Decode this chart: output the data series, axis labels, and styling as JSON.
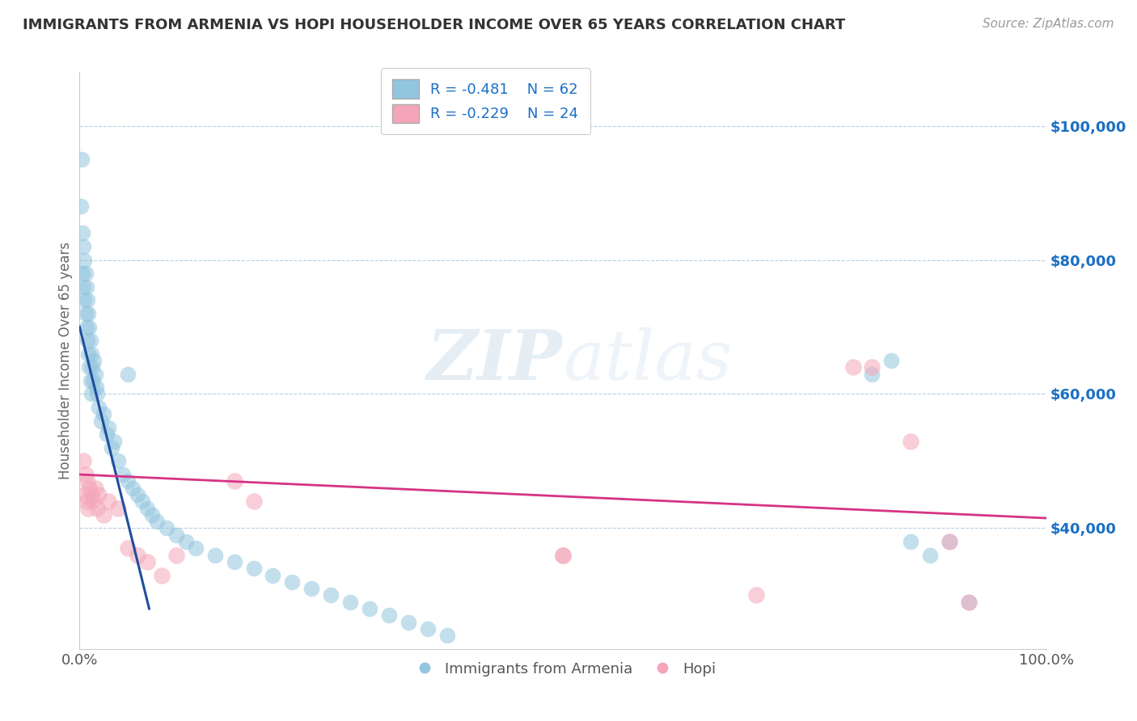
{
  "title": "IMMIGRANTS FROM ARMENIA VS HOPI HOUSEHOLDER INCOME OVER 65 YEARS CORRELATION CHART",
  "source_text": "Source: ZipAtlas.com",
  "ylabel": "Householder Income Over 65 years",
  "xlim": [
    0,
    1.0
  ],
  "ylim": [
    22000,
    108000
  ],
  "xticks": [
    0.0,
    1.0
  ],
  "xticklabels": [
    "0.0%",
    "100.0%"
  ],
  "yticks": [
    40000,
    60000,
    80000,
    100000
  ],
  "yticklabels": [
    "$40,000",
    "$60,000",
    "$80,000",
    "$100,000"
  ],
  "legend_r1": "R = -0.481",
  "legend_n1": "N = 62",
  "legend_r2": "R = -0.229",
  "legend_n2": "N = 24",
  "legend_label1": "Immigrants from Armenia",
  "legend_label2": "Hopi",
  "color_blue": "#92c5de",
  "color_pink": "#f4a6b8",
  "line_color_blue": "#1f4e9e",
  "line_color_pink": "#d63384",
  "watermark_zip": "ZIP",
  "watermark_atlas": "atlas",
  "blue_scatter_x": [
    0.001,
    0.002,
    0.003,
    0.003,
    0.004,
    0.004,
    0.005,
    0.005,
    0.006,
    0.006,
    0.007,
    0.007,
    0.008,
    0.008,
    0.009,
    0.009,
    0.01,
    0.01,
    0.011,
    0.011,
    0.012,
    0.012,
    0.013,
    0.014,
    0.015,
    0.016,
    0.017,
    0.018,
    0.02,
    0.022,
    0.025,
    0.028,
    0.03,
    0.033,
    0.036,
    0.04,
    0.045,
    0.05,
    0.055,
    0.06,
    0.065,
    0.07,
    0.075,
    0.08,
    0.09,
    0.1,
    0.11,
    0.12,
    0.14,
    0.16,
    0.18,
    0.2,
    0.22,
    0.24,
    0.26,
    0.28,
    0.3,
    0.32,
    0.34,
    0.36,
    0.38,
    0.05
  ],
  "blue_scatter_y": [
    88000,
    95000,
    84000,
    78000,
    82000,
    76000,
    80000,
    74000,
    78000,
    72000,
    76000,
    70000,
    74000,
    68000,
    72000,
    66000,
    70000,
    64000,
    68000,
    62000,
    66000,
    60000,
    64000,
    62000,
    65000,
    63000,
    61000,
    60000,
    58000,
    56000,
    57000,
    54000,
    55000,
    52000,
    53000,
    50000,
    48000,
    47000,
    46000,
    45000,
    44000,
    43000,
    42000,
    41000,
    40000,
    39000,
    38000,
    37000,
    36000,
    35000,
    34000,
    33000,
    32000,
    31000,
    30000,
    29000,
    28000,
    27000,
    26000,
    25000,
    24000,
    63000
  ],
  "pink_scatter_x": [
    0.004,
    0.005,
    0.006,
    0.007,
    0.008,
    0.009,
    0.01,
    0.012,
    0.014,
    0.016,
    0.018,
    0.02,
    0.025,
    0.03,
    0.04,
    0.05,
    0.06,
    0.07,
    0.085,
    0.1,
    0.16,
    0.18,
    0.5,
    0.7
  ],
  "pink_scatter_y": [
    50000,
    45000,
    48000,
    44000,
    47000,
    43000,
    46000,
    45000,
    44000,
    46000,
    43000,
    45000,
    42000,
    44000,
    43000,
    37000,
    36000,
    35000,
    33000,
    36000,
    47000,
    44000,
    36000,
    30000
  ],
  "blue_line_x": [
    0.0,
    0.072
  ],
  "blue_line_y": [
    70000,
    28000
  ],
  "pink_line_x": [
    0.0,
    1.0
  ],
  "pink_line_y": [
    48000,
    41500
  ],
  "right_blue_points_x": [
    0.82,
    0.84,
    0.86,
    0.88,
    0.9,
    0.92
  ],
  "right_blue_points_y": [
    63000,
    65000,
    38000,
    36000,
    38000,
    29000
  ],
  "right_pink_points_x": [
    0.8,
    0.82,
    0.86,
    0.9,
    0.92
  ],
  "right_pink_points_y": [
    64000,
    64000,
    53000,
    38000,
    29000
  ],
  "mid_pink_x": [
    0.5
  ],
  "mid_pink_y": [
    36000
  ],
  "background_color": "#ffffff",
  "grid_color": "#b8cfe0",
  "title_color": "#333333",
  "axis_label_color": "#666666",
  "ytick_color_right": "#1a6fc4",
  "source_color": "#999999"
}
